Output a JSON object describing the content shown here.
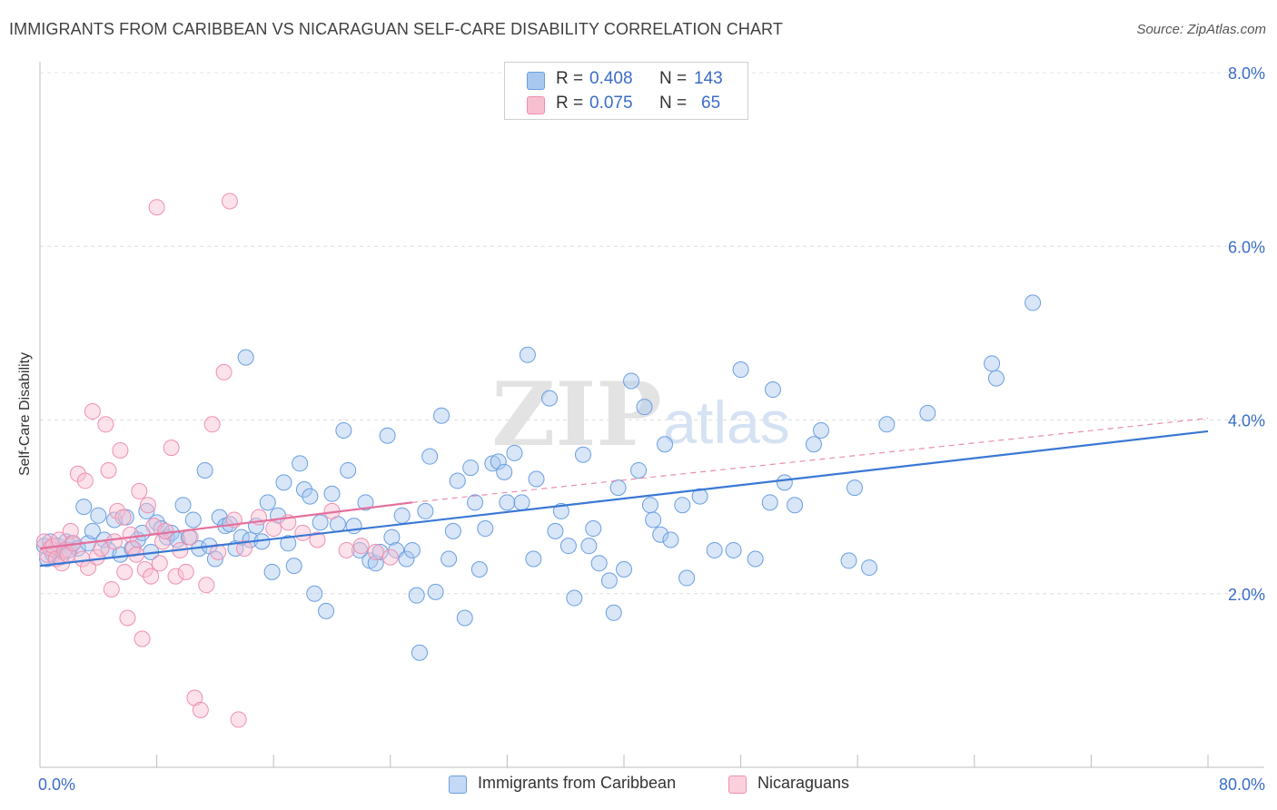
{
  "title": "IMMIGRANTS FROM CARIBBEAN VS NICARAGUAN SELF-CARE DISABILITY CORRELATION CHART",
  "source": "Source: ZipAtlas.com",
  "watermark": {
    "zip": "ZIP",
    "atlas": "atlas"
  },
  "legend": {
    "rows": [
      {
        "r_label": "R =",
        "r_value": "0.408",
        "n_label": "N =",
        "n_value": "143",
        "color": "#a8c8f0",
        "border": "#6a9fe0"
      },
      {
        "r_label": "R =",
        "r_value": "0.075",
        "n_label": "N =",
        "n_value": "65",
        "color": "#f8bfd0",
        "border": "#ee8fb0"
      }
    ]
  },
  "bottom_legend": [
    {
      "label": "Immigrants from Caribbean",
      "color": "#c4d9f5",
      "border": "#6a9fe0"
    },
    {
      "label": "Nicaraguans",
      "color": "#fbd0dc",
      "border": "#ee8fb0"
    }
  ],
  "chart_data": {
    "type": "scatter",
    "title": "IMMIGRANTS FROM CARIBBEAN VS NICARAGUAN SELF-CARE DISABILITY CORRELATION CHART",
    "xlabel": "",
    "ylabel": "Self-Care Disability",
    "xlim": [
      0,
      80
    ],
    "ylim": [
      0,
      8
    ],
    "x_tick_labels": [
      "0.0%",
      "80.0%"
    ],
    "y_ticks": [
      2,
      4,
      6,
      8
    ],
    "y_tick_labels": [
      "2.0%",
      "4.0%",
      "6.0%",
      "8.0%"
    ],
    "grid": true,
    "legend_position": "top-center",
    "series": [
      {
        "name": "Immigrants from Caribbean",
        "color": "#6a9fe0",
        "fill": "#a8c8f0",
        "trend": {
          "x": [
            0,
            80
          ],
          "y": [
            2.32,
            3.87
          ],
          "color": "#3a78d4",
          "dashed_extension": false
        },
        "points": [
          [
            0.3,
            2.55
          ],
          [
            0.5,
            2.4
          ],
          [
            0.7,
            2.6
          ],
          [
            0.9,
            2.45
          ],
          [
            1.0,
            2.5
          ],
          [
            1.2,
            2.55
          ],
          [
            1.4,
            2.42
          ],
          [
            1.6,
            2.48
          ],
          [
            1.8,
            2.6
          ],
          [
            2.0,
            2.5
          ],
          [
            2.2,
            2.58
          ],
          [
            2.6,
            2.52
          ],
          [
            3.0,
            3.0
          ],
          [
            3.3,
            2.58
          ],
          [
            3.6,
            2.72
          ],
          [
            4.0,
            2.9
          ],
          [
            4.4,
            2.62
          ],
          [
            4.7,
            2.5
          ],
          [
            5.1,
            2.85
          ],
          [
            5.5,
            2.45
          ],
          [
            5.9,
            2.88
          ],
          [
            6.3,
            2.52
          ],
          [
            6.7,
            2.62
          ],
          [
            7.0,
            2.7
          ],
          [
            7.3,
            2.95
          ],
          [
            7.6,
            2.48
          ],
          [
            8.0,
            2.82
          ],
          [
            8.3,
            2.75
          ],
          [
            8.7,
            2.65
          ],
          [
            9.0,
            2.7
          ],
          [
            9.4,
            2.62
          ],
          [
            9.8,
            3.02
          ],
          [
            10.2,
            2.65
          ],
          [
            10.5,
            2.85
          ],
          [
            10.9,
            2.52
          ],
          [
            11.3,
            3.42
          ],
          [
            11.6,
            2.55
          ],
          [
            12.0,
            2.4
          ],
          [
            12.3,
            2.88
          ],
          [
            12.7,
            2.78
          ],
          [
            13.0,
            2.8
          ],
          [
            13.4,
            2.52
          ],
          [
            13.8,
            2.65
          ],
          [
            14.1,
            4.72
          ],
          [
            14.4,
            2.62
          ],
          [
            14.8,
            2.78
          ],
          [
            15.2,
            2.6
          ],
          [
            15.6,
            3.05
          ],
          [
            15.9,
            2.25
          ],
          [
            16.3,
            2.9
          ],
          [
            16.7,
            3.28
          ],
          [
            17.0,
            2.58
          ],
          [
            17.4,
            2.32
          ],
          [
            17.8,
            3.5
          ],
          [
            18.1,
            3.2
          ],
          [
            18.5,
            3.12
          ],
          [
            18.8,
            2.0
          ],
          [
            19.2,
            2.82
          ],
          [
            19.6,
            1.8
          ],
          [
            20.0,
            3.15
          ],
          [
            20.4,
            2.8
          ],
          [
            20.8,
            3.88
          ],
          [
            21.1,
            3.42
          ],
          [
            21.5,
            2.78
          ],
          [
            21.9,
            2.5
          ],
          [
            22.3,
            3.05
          ],
          [
            22.6,
            2.38
          ],
          [
            23.0,
            2.35
          ],
          [
            23.3,
            2.48
          ],
          [
            23.8,
            3.82
          ],
          [
            24.1,
            2.65
          ],
          [
            24.4,
            2.5
          ],
          [
            24.8,
            2.9
          ],
          [
            25.1,
            2.4
          ],
          [
            25.5,
            2.5
          ],
          [
            25.8,
            1.98
          ],
          [
            26.0,
            1.32
          ],
          [
            26.4,
            2.95
          ],
          [
            26.7,
            3.58
          ],
          [
            27.1,
            2.02
          ],
          [
            27.5,
            4.05
          ],
          [
            28.0,
            2.4
          ],
          [
            28.3,
            2.72
          ],
          [
            28.6,
            3.3
          ],
          [
            29.1,
            1.72
          ],
          [
            29.5,
            3.45
          ],
          [
            29.8,
            3.05
          ],
          [
            30.1,
            2.28
          ],
          [
            30.5,
            2.75
          ],
          [
            31.0,
            3.5
          ],
          [
            31.4,
            3.52
          ],
          [
            31.8,
            3.4
          ],
          [
            32.0,
            3.05
          ],
          [
            32.5,
            3.62
          ],
          [
            33.0,
            3.05
          ],
          [
            33.4,
            4.75
          ],
          [
            33.8,
            2.4
          ],
          [
            34.0,
            3.32
          ],
          [
            34.9,
            4.25
          ],
          [
            35.3,
            2.72
          ],
          [
            35.7,
            2.95
          ],
          [
            36.2,
            2.55
          ],
          [
            36.6,
            1.95
          ],
          [
            37.2,
            3.6
          ],
          [
            37.6,
            2.55
          ],
          [
            37.9,
            2.75
          ],
          [
            38.3,
            2.35
          ],
          [
            39.0,
            2.15
          ],
          [
            39.3,
            1.78
          ],
          [
            39.6,
            3.22
          ],
          [
            40.0,
            2.28
          ],
          [
            40.5,
            4.45
          ],
          [
            41.0,
            3.42
          ],
          [
            41.4,
            4.15
          ],
          [
            41.8,
            3.02
          ],
          [
            42.0,
            2.85
          ],
          [
            42.5,
            2.68
          ],
          [
            42.8,
            3.72
          ],
          [
            43.2,
            2.62
          ],
          [
            44.0,
            3.02
          ],
          [
            44.3,
            2.18
          ],
          [
            45.2,
            3.12
          ],
          [
            46.2,
            2.5
          ],
          [
            47.5,
            2.5
          ],
          [
            48.0,
            4.58
          ],
          [
            49.0,
            2.4
          ],
          [
            50.0,
            3.05
          ],
          [
            50.2,
            4.35
          ],
          [
            51.0,
            3.28
          ],
          [
            51.7,
            3.02
          ],
          [
            53.0,
            3.72
          ],
          [
            53.5,
            3.88
          ],
          [
            55.4,
            2.38
          ],
          [
            55.8,
            3.22
          ],
          [
            56.8,
            2.3
          ],
          [
            58.0,
            3.95
          ],
          [
            60.8,
            4.08
          ],
          [
            65.2,
            4.65
          ],
          [
            65.5,
            4.48
          ],
          [
            68.0,
            5.35
          ]
        ]
      },
      {
        "name": "Nicaraguans",
        "color": "#ee8fb0",
        "fill": "#f8bfd0",
        "trend": {
          "x": [
            0,
            25.5
          ],
          "y": [
            2.52,
            3.05
          ],
          "color": "#e46f9c",
          "dashed_extension": true,
          "dashed_to": {
            "x": 80,
            "y": 4.02
          }
        },
        "points": [
          [
            0.3,
            2.6
          ],
          [
            0.5,
            2.45
          ],
          [
            0.7,
            2.52
          ],
          [
            0.9,
            2.55
          ],
          [
            1.1,
            2.4
          ],
          [
            1.3,
            2.62
          ],
          [
            1.5,
            2.35
          ],
          [
            1.7,
            2.5
          ],
          [
            1.9,
            2.45
          ],
          [
            2.1,
            2.72
          ],
          [
            2.3,
            2.58
          ],
          [
            2.6,
            3.38
          ],
          [
            2.9,
            2.4
          ],
          [
            3.1,
            3.3
          ],
          [
            3.3,
            2.3
          ],
          [
            3.6,
            4.1
          ],
          [
            3.9,
            2.42
          ],
          [
            4.2,
            2.52
          ],
          [
            4.5,
            3.95
          ],
          [
            4.7,
            3.42
          ],
          [
            4.9,
            2.05
          ],
          [
            5.1,
            2.6
          ],
          [
            5.3,
            2.95
          ],
          [
            5.5,
            3.65
          ],
          [
            5.7,
            2.88
          ],
          [
            5.8,
            2.25
          ],
          [
            6.0,
            1.72
          ],
          [
            6.2,
            2.68
          ],
          [
            6.4,
            2.52
          ],
          [
            6.6,
            2.45
          ],
          [
            6.8,
            3.18
          ],
          [
            7.0,
            1.48
          ],
          [
            7.2,
            2.28
          ],
          [
            7.4,
            3.02
          ],
          [
            7.6,
            2.2
          ],
          [
            7.8,
            2.78
          ],
          [
            8.0,
            6.45
          ],
          [
            8.2,
            2.35
          ],
          [
            8.4,
            2.6
          ],
          [
            8.6,
            2.72
          ],
          [
            9.0,
            3.68
          ],
          [
            9.3,
            2.2
          ],
          [
            9.6,
            2.5
          ],
          [
            10.0,
            2.25
          ],
          [
            10.3,
            2.65
          ],
          [
            10.6,
            0.8
          ],
          [
            11.0,
            0.66
          ],
          [
            11.4,
            2.1
          ],
          [
            11.8,
            3.95
          ],
          [
            12.2,
            2.48
          ],
          [
            12.6,
            4.55
          ],
          [
            13.0,
            6.52
          ],
          [
            13.3,
            2.85
          ],
          [
            13.6,
            0.55
          ],
          [
            14.0,
            2.52
          ],
          [
            15.0,
            2.88
          ],
          [
            16.0,
            2.75
          ],
          [
            17.0,
            2.82
          ],
          [
            18.0,
            2.7
          ],
          [
            19.0,
            2.62
          ],
          [
            20.0,
            2.95
          ],
          [
            21.0,
            2.5
          ],
          [
            22.0,
            2.55
          ],
          [
            23.0,
            2.48
          ],
          [
            24.0,
            2.42
          ]
        ]
      }
    ]
  }
}
